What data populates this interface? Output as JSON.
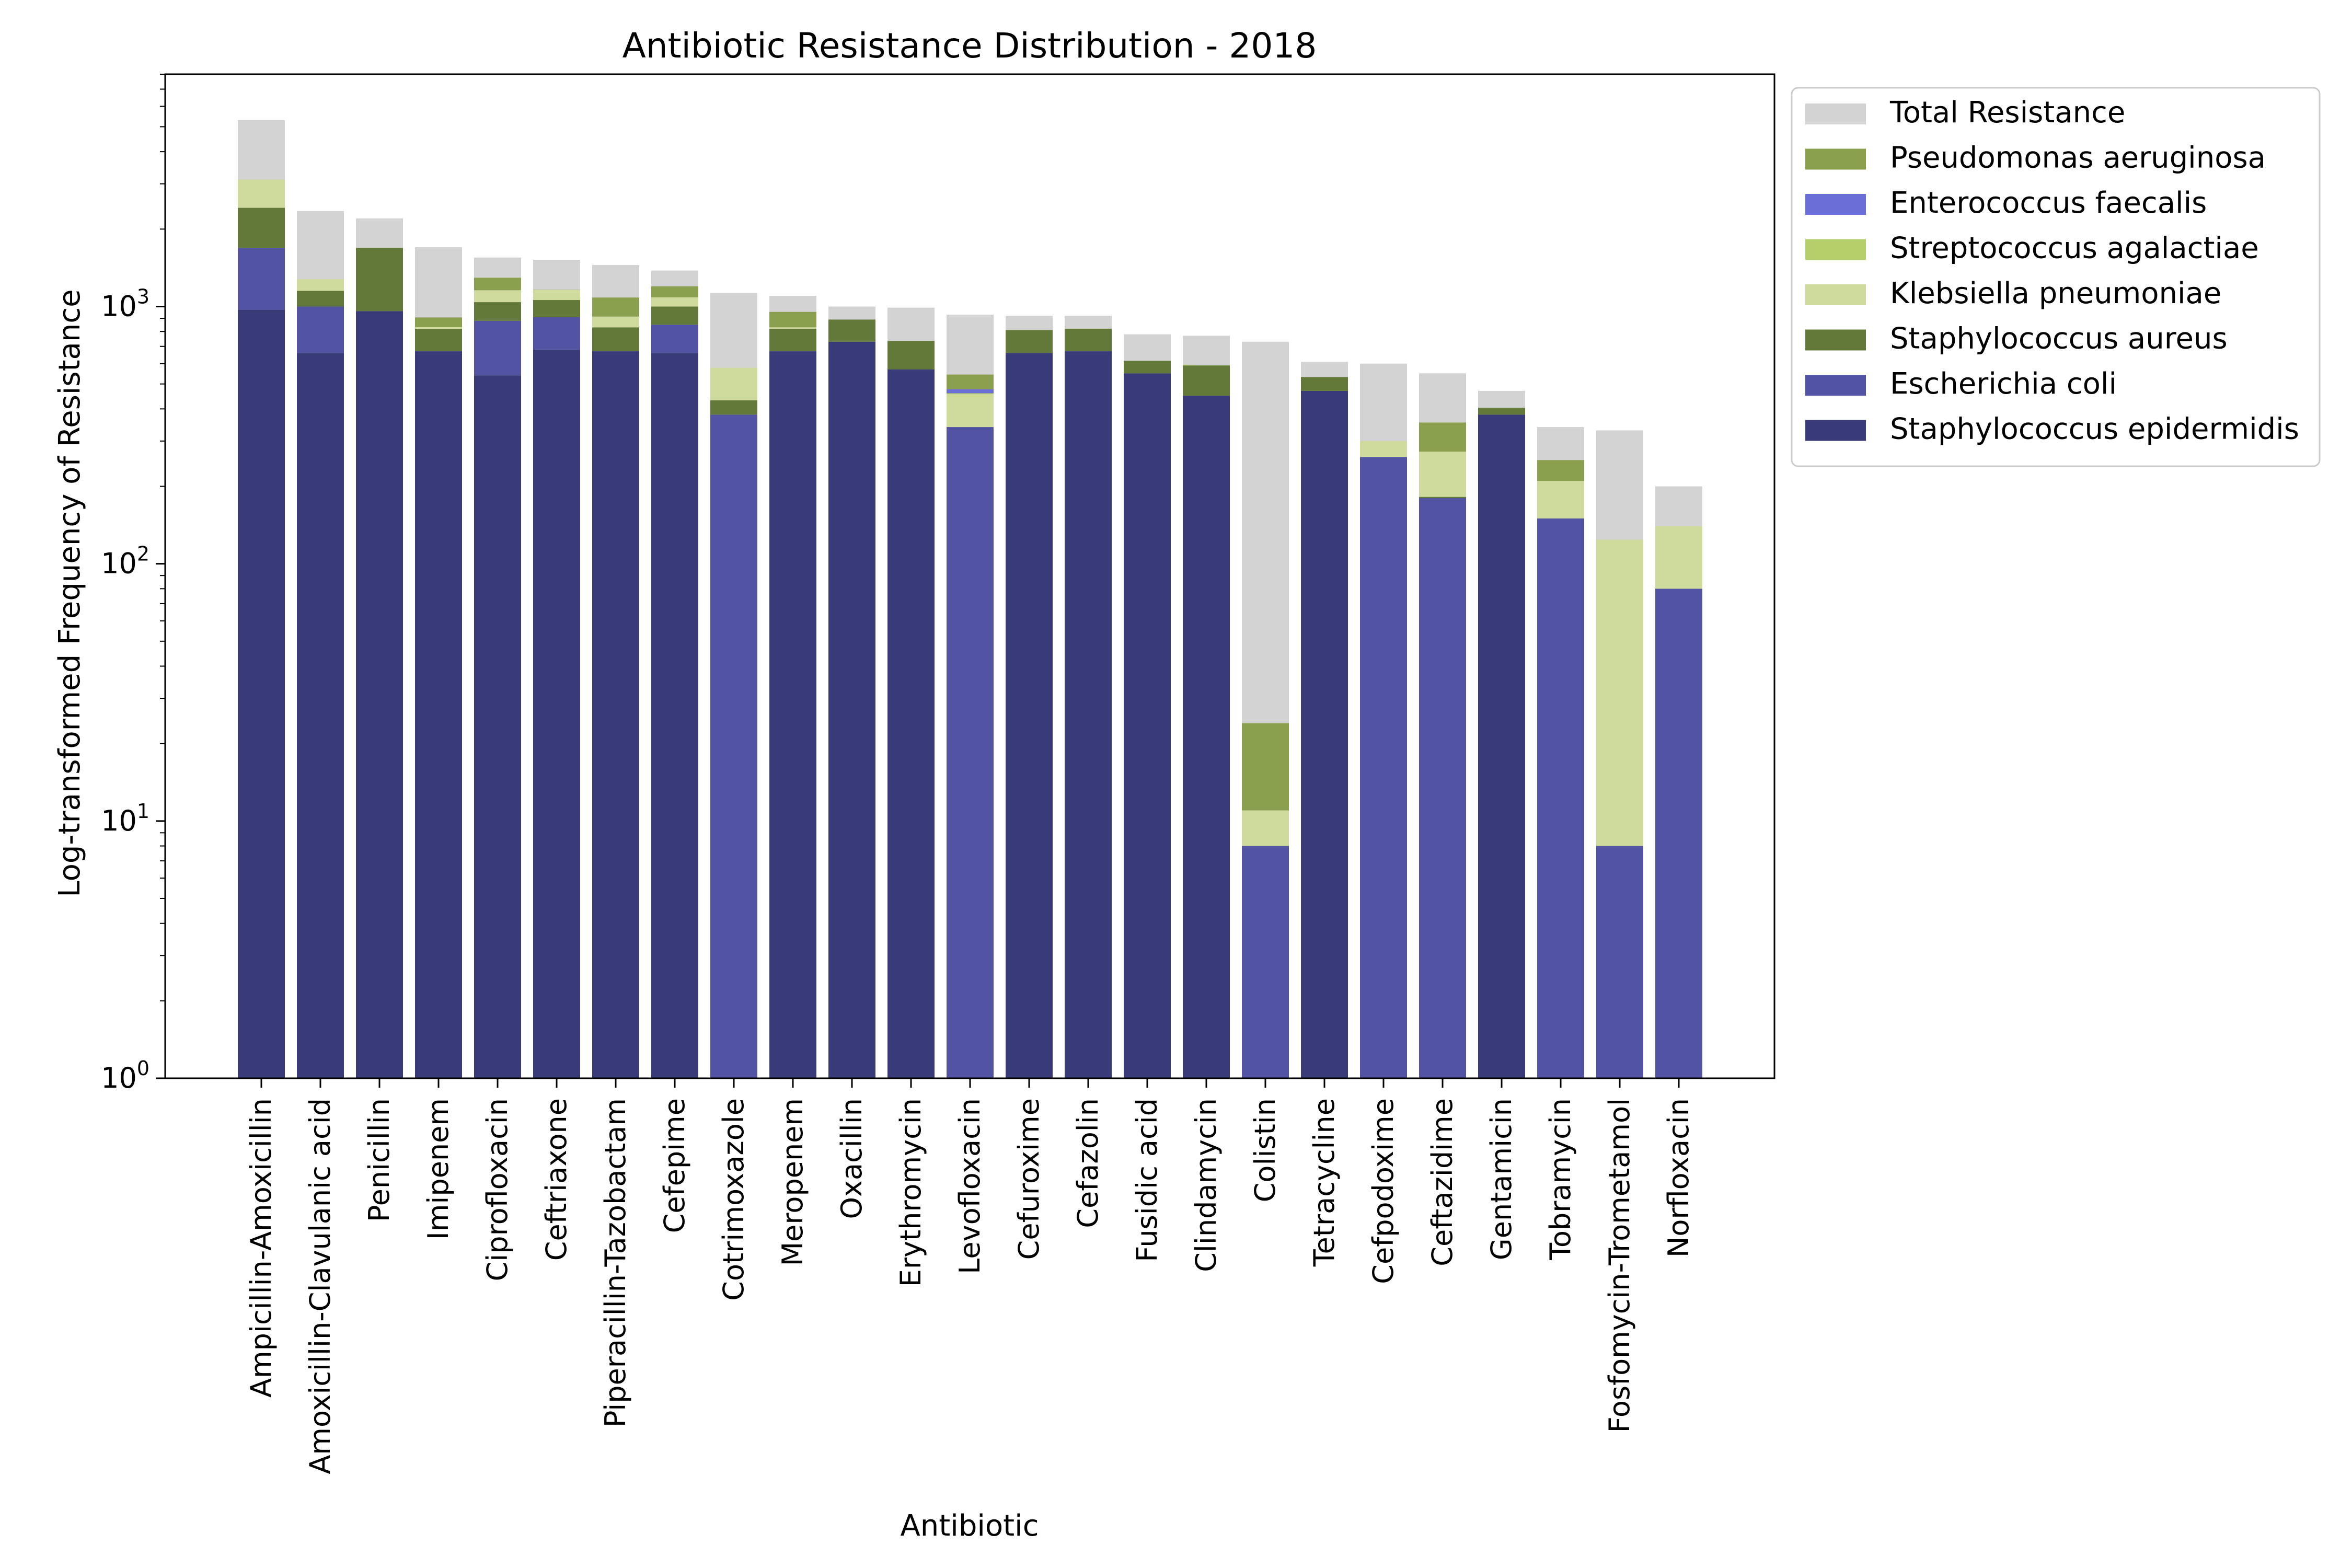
{
  "chart_data": {
    "type": "bar",
    "stacked": true,
    "title": "Antibiotic Resistance Distribution - 2018",
    "xlabel": "Antibiotic",
    "ylabel": "Log-transformed Frequency of Resistance",
    "yscale": "log",
    "ylim": [
      1,
      8000
    ],
    "y_ticks": [
      {
        "value": 1,
        "base": "10",
        "exp": "0"
      },
      {
        "value": 10,
        "base": "10",
        "exp": "1"
      },
      {
        "value": 100,
        "base": "10",
        "exp": "2"
      },
      {
        "value": 1000,
        "base": "10",
        "exp": "3"
      }
    ],
    "legend_position": "outside-top-right",
    "categories": [
      "Ampicillin-Amoxicillin",
      "Amoxicillin-Clavulanic acid",
      "Penicillin",
      "Imipenem",
      "Ciprofloxacin",
      "Ceftriaxone",
      "Piperacillin-Tazobactam",
      "Cefepime",
      "Cotrimoxazole",
      "Meropenem",
      "Oxacillin",
      "Erythromycin",
      "Levofloxacin",
      "Cefuroxime",
      "Cefazolin",
      "Fusidic acid",
      "Clindamycin",
      "Colistin",
      "Tetracycline",
      "Cefpodoxime",
      "Ceftazidime",
      "Gentamicin",
      "Tobramycin",
      "Fosfomycin-Trometamol",
      "Norfloxacin"
    ],
    "total": {
      "name": "Total Resistance",
      "color": "#d3d3d3",
      "values": [
        5300,
        2350,
        2200,
        1700,
        1550,
        1520,
        1450,
        1380,
        1130,
        1100,
        1000,
        990,
        930,
        920,
        920,
        780,
        770,
        730,
        610,
        600,
        550,
        470,
        340,
        330,
        200
      ]
    },
    "stack_order": [
      "Staphylococcus epidermidis",
      "Escherichia coli",
      "Staphylococcus aureus",
      "Klebsiella pneumoniae",
      "Streptococcus agalactiae",
      "Enterococcus faecalis",
      "Pseudomonas aeruginosa"
    ],
    "series": [
      {
        "name": "Pseudomonas aeruginosa",
        "color": "#8ba04f",
        "values": [
          0,
          0,
          0,
          76,
          137,
          2,
          170,
          112,
          0,
          123,
          0,
          0,
          67,
          0,
          0,
          0,
          0,
          13,
          0,
          0,
          81,
          0,
          43,
          0,
          0
        ]
      },
      {
        "name": "Enterococcus faecalis",
        "color": "#6b6ed6",
        "values": [
          0,
          0,
          0,
          0,
          0,
          0,
          0,
          0,
          0,
          0,
          0,
          0,
          17,
          0,
          0,
          0,
          0,
          0,
          0,
          0,
          0,
          0,
          0,
          0,
          0
        ]
      },
      {
        "name": "Streptococcus agalactiae",
        "color": "#b5cf6b",
        "values": [
          0,
          0,
          0,
          0,
          0,
          0,
          0,
          0,
          0,
          0,
          0,
          0,
          4,
          0,
          0,
          0,
          4,
          0,
          0,
          0,
          0,
          0,
          0,
          0,
          0
        ]
      },
      {
        "name": "Klebsiella pneumoniae",
        "color": "#cedb9c",
        "values": [
          700,
          128,
          0,
          11,
          117,
          100,
          84,
          86,
          146,
          10,
          0,
          0,
          116,
          0,
          0,
          0,
          0,
          3,
          0,
          40,
          91,
          0,
          60,
          116,
          60
        ]
      },
      {
        "name": "Staphylococcus aureus",
        "color": "#637939",
        "values": [
          730,
          150,
          730,
          150,
          160,
          150,
          160,
          150,
          52,
          150,
          160,
          165,
          0,
          150,
          150,
          65,
          140,
          0,
          62,
          0,
          2,
          24,
          0,
          0,
          0
        ]
      },
      {
        "name": "Escherichia coli",
        "color": "#5254a3",
        "values": [
          720,
          340,
          0,
          0,
          340,
          230,
          0,
          190,
          380,
          0,
          0,
          0,
          340,
          0,
          0,
          0,
          0,
          8,
          0,
          260,
          180,
          0,
          150,
          8,
          80
        ]
      },
      {
        "name": "Staphylococcus epidermidis",
        "color": "#393b79",
        "values": [
          970,
          660,
          960,
          670,
          540,
          680,
          670,
          660,
          0,
          670,
          730,
          570,
          0,
          660,
          670,
          550,
          450,
          0,
          470,
          0,
          0,
          380,
          0,
          0,
          0
        ]
      }
    ]
  }
}
